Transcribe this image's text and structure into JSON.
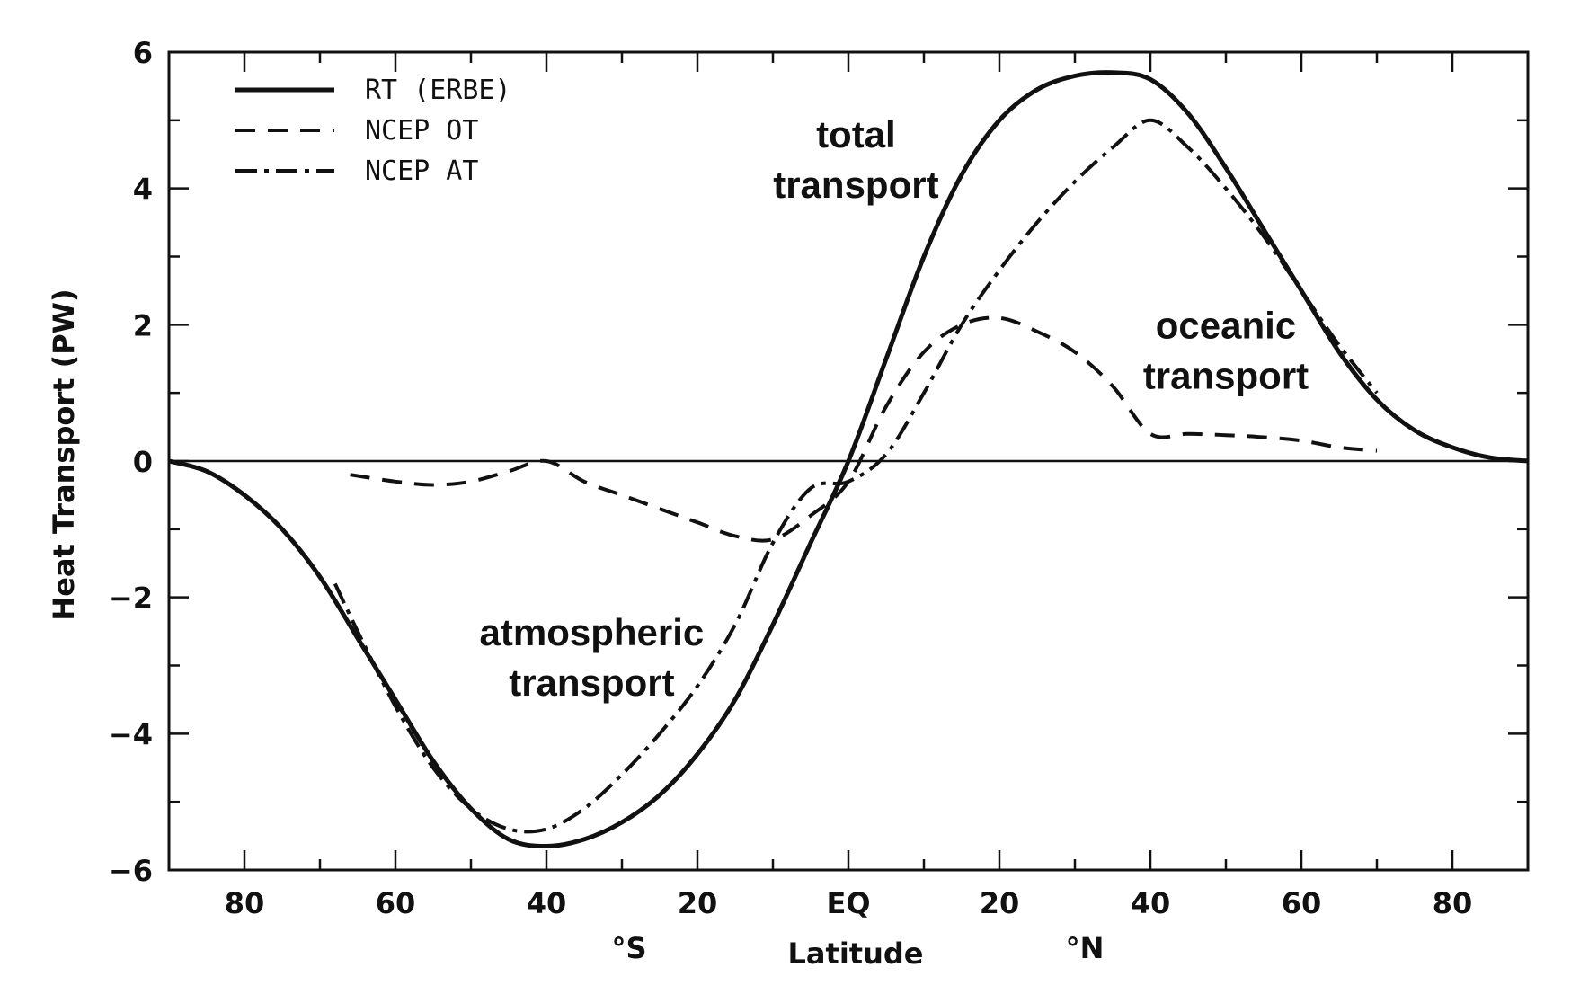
{
  "chart_data": {
    "type": "line",
    "xlabel": "Latitude",
    "ylabel": "Heat Transport (PW)",
    "xlim": [
      -90,
      90
    ],
    "ylim": [
      -6,
      6
    ],
    "x_ticks": [
      -80,
      -60,
      -40,
      -20,
      0,
      20,
      40,
      60,
      80
    ],
    "x_tick_labels": [
      "80",
      "60",
      "40",
      "20",
      "EQ",
      "20",
      "40",
      "60",
      "80"
    ],
    "y_ticks": [
      6,
      4,
      2,
      0,
      -2,
      -4,
      -6
    ],
    "y_tick_labels": [
      "6",
      "4",
      "2",
      "0",
      "−2",
      "−4",
      "−6"
    ],
    "hemisphere_labels": {
      "south": "°S",
      "north": "°N"
    },
    "legend_position": "top-left",
    "grid": false,
    "zero_line": true,
    "series": [
      {
        "name": "RT (ERBE)",
        "style": "solid",
        "x": [
          -90,
          -85,
          -80,
          -75,
          -70,
          -65,
          -60,
          -55,
          -50,
          -45,
          -40,
          -35,
          -30,
          -25,
          -20,
          -15,
          -10,
          -5,
          0,
          5,
          10,
          15,
          20,
          25,
          30,
          35,
          40,
          45,
          50,
          55,
          60,
          65,
          70,
          75,
          80,
          85,
          90
        ],
        "y": [
          0,
          -0.15,
          -0.5,
          -1.0,
          -1.7,
          -2.6,
          -3.5,
          -4.4,
          -5.1,
          -5.55,
          -5.65,
          -5.55,
          -5.3,
          -4.9,
          -4.3,
          -3.5,
          -2.4,
          -1.2,
          0.0,
          1.5,
          3.0,
          4.2,
          5.0,
          5.45,
          5.65,
          5.7,
          5.6,
          5.1,
          4.3,
          3.4,
          2.5,
          1.6,
          0.9,
          0.45,
          0.2,
          0.05,
          0
        ]
      },
      {
        "name": "NCEP OT",
        "style": "dashed",
        "x": [
          -66,
          -60,
          -55,
          -50,
          -45,
          -40,
          -35,
          -30,
          -25,
          -20,
          -15,
          -10,
          -5,
          0,
          5,
          10,
          15,
          20,
          25,
          30,
          35,
          40,
          45,
          50,
          55,
          60,
          65,
          70
        ],
        "y": [
          -0.2,
          -0.3,
          -0.35,
          -0.3,
          -0.15,
          0.0,
          -0.3,
          -0.5,
          -0.7,
          -0.9,
          -1.1,
          -1.15,
          -0.8,
          -0.3,
          0.8,
          1.6,
          2.0,
          2.1,
          1.9,
          1.6,
          1.1,
          0.4,
          0.4,
          0.38,
          0.35,
          0.3,
          0.2,
          0.15
        ]
      },
      {
        "name": "NCEP AT",
        "style": "dash-dot",
        "x": [
          -68,
          -65,
          -60,
          -55,
          -50,
          -45,
          -40,
          -35,
          -30,
          -25,
          -20,
          -15,
          -10,
          -5,
          0,
          5,
          10,
          15,
          20,
          25,
          30,
          35,
          40,
          45,
          50,
          55,
          60,
          65,
          70
        ],
        "y": [
          -1.8,
          -2.5,
          -3.6,
          -4.5,
          -5.1,
          -5.4,
          -5.4,
          -5.1,
          -4.6,
          -4.0,
          -3.3,
          -2.4,
          -1.2,
          -0.4,
          -0.3,
          0.1,
          1.0,
          2.0,
          2.8,
          3.5,
          4.1,
          4.6,
          5.0,
          4.6,
          4.0,
          3.3,
          2.5,
          1.7,
          1.0
        ]
      }
    ],
    "annotations": [
      {
        "lines": [
          "total",
          "transport"
        ],
        "at": [
          1,
          4.6
        ]
      },
      {
        "lines": [
          "oceanic",
          "transport"
        ],
        "at": [
          50,
          1.8
        ]
      },
      {
        "lines": [
          "atmospheric",
          "transport"
        ],
        "at": [
          -34,
          -2.7
        ]
      }
    ]
  }
}
